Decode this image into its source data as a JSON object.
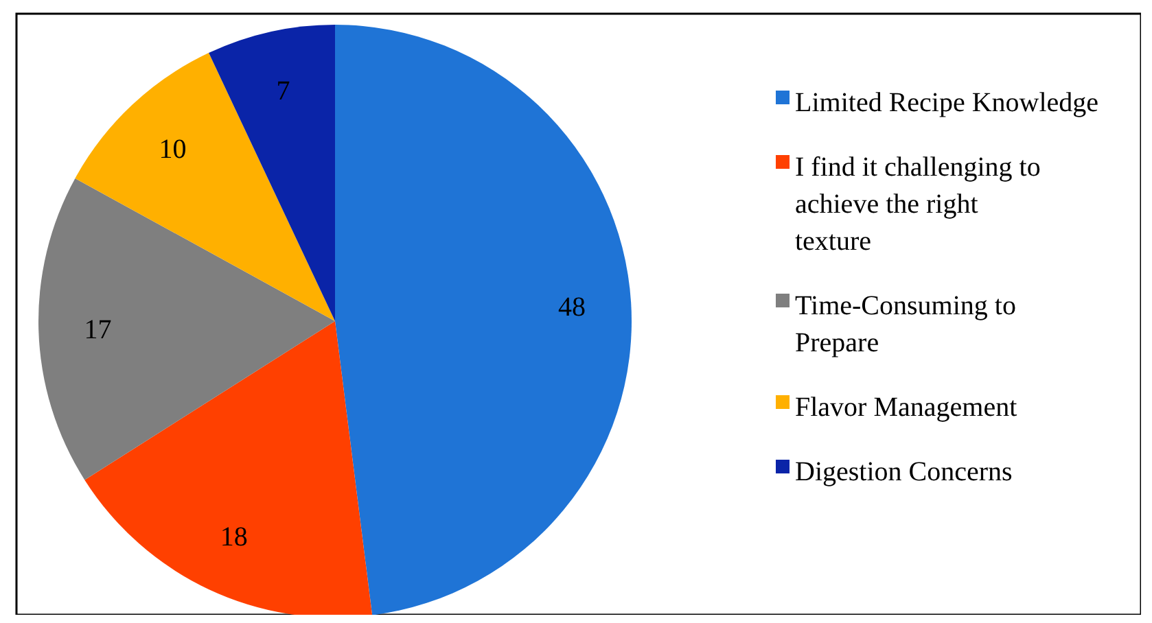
{
  "chart_data": {
    "type": "pie",
    "categories": [
      "Limited Recipe Knowledge",
      "I find it challenging to achieve the right texture",
      "Time-Consuming to Prepare",
      "Flavor Management",
      "Digestion Concerns"
    ],
    "values": [
      48,
      18,
      17,
      10,
      7
    ],
    "colors": [
      "#1f74d6",
      "#ff4000",
      "#7f7f7f",
      "#ffb000",
      "#0a24a8"
    ],
    "data_labels": true,
    "legend": "right"
  }
}
